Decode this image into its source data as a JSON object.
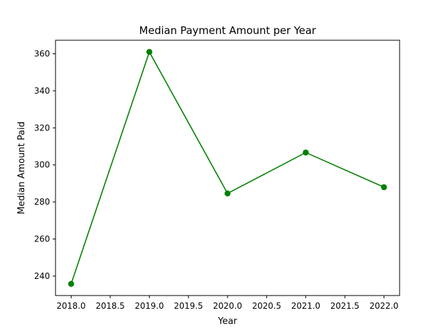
{
  "chart_data": {
    "type": "line",
    "title": "Median Payment Amount per Year",
    "xlabel": "Year",
    "ylabel": "Median Amount Paid",
    "x": [
      2018,
      2019,
      2020,
      2021,
      2022
    ],
    "series": [
      {
        "values": [
          235.8,
          361.0,
          284.6,
          306.7,
          288.0
        ],
        "color": "#008000",
        "marker": "circle"
      }
    ],
    "xlim": [
      2017.8,
      2022.2
    ],
    "ylim": [
      229.5,
      367.3
    ],
    "xticks": [
      2018.0,
      2018.5,
      2019.0,
      2019.5,
      2020.0,
      2020.5,
      2021.0,
      2021.5,
      2022.0
    ],
    "xtick_labels": [
      "2018.0",
      "2018.5",
      "2019.0",
      "2019.5",
      "2020.0",
      "2020.5",
      "2021.0",
      "2021.5",
      "2022.0"
    ],
    "yticks": [
      240,
      260,
      280,
      300,
      320,
      340,
      360
    ],
    "ytick_labels": [
      "240",
      "260",
      "280",
      "300",
      "320",
      "340",
      "360"
    ],
    "grid": false,
    "legend": false
  }
}
